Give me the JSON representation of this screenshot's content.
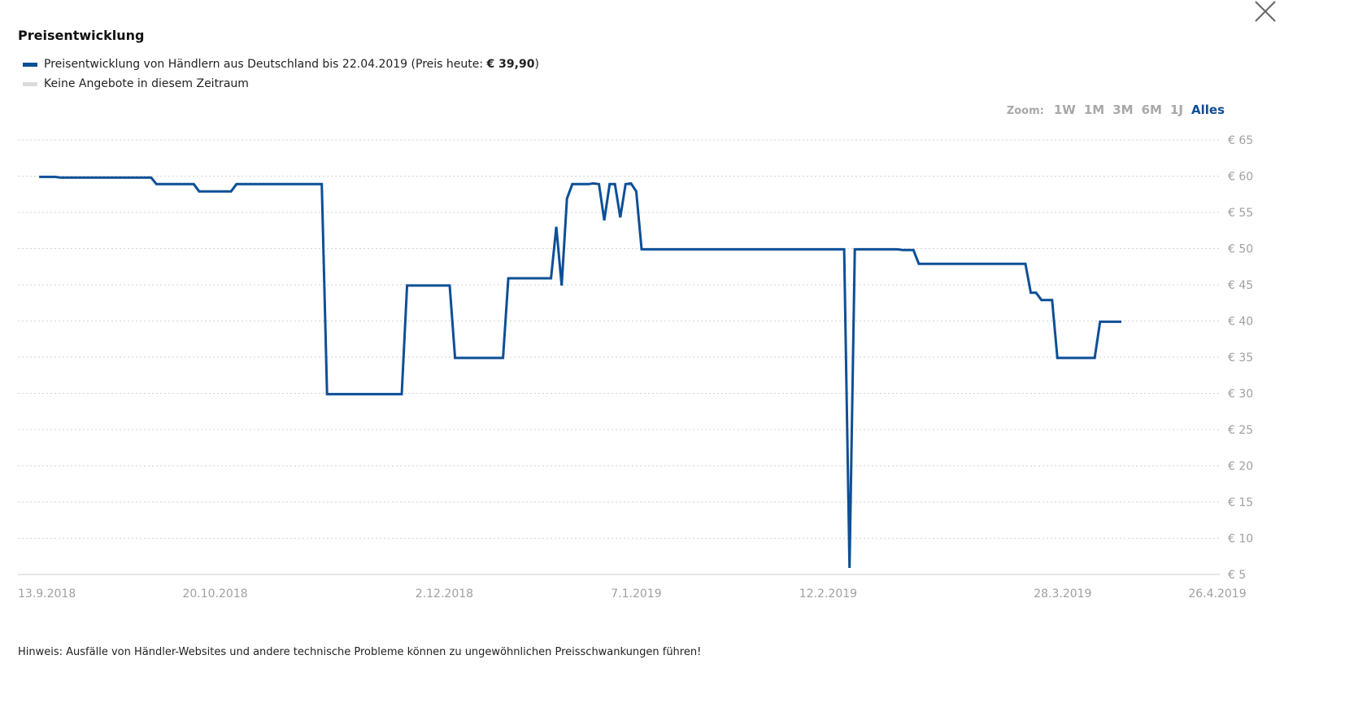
{
  "header": {
    "title": "Preisentwicklung",
    "close_icon": "close-icon"
  },
  "legend": {
    "series_text": "Preisentwicklung von Händlern aus Deutschland bis 22.04.2019 (Preis heute: ",
    "series_price": "€ 39,90",
    "series_end": ")",
    "series_color": "#0d4f96",
    "empty_text": "Keine Angebote in diesem Zeitraum",
    "empty_color": "#dcdcdc"
  },
  "zoom": {
    "label": "Zoom:",
    "options": [
      "1W",
      "1M",
      "3M",
      "6M",
      "1J",
      "Alles"
    ],
    "selected": "Alles"
  },
  "note": "Hinweis: Ausfälle von Händler-Websites und andere technische Probleme können zu ungewöhnlichen Preisschwankungen führen!",
  "chart_data": {
    "type": "line",
    "ylim": [
      5,
      65
    ],
    "yticks": [
      5,
      10,
      15,
      20,
      25,
      30,
      35,
      40,
      45,
      50,
      55,
      60,
      65
    ],
    "ytick_labels": [
      "€ 5",
      "€ 10",
      "€ 15",
      "€ 20",
      "€ 25",
      "€ 30",
      "€ 35",
      "€ 40",
      "€ 45",
      "€ 50",
      "€ 55",
      "€ 60",
      "€ 65"
    ],
    "xlim": [
      "2018-09-13",
      "2019-04-26"
    ],
    "xticks": [
      "2018-09-13",
      "2018-10-20",
      "2018-12-02",
      "2019-01-07",
      "2019-02-12",
      "2019-03-28",
      "2019-04-26"
    ],
    "xtick_labels": [
      "13.9.2018",
      "20.10.2018",
      "2.12.2018",
      "7.1.2019",
      "12.2.2019",
      "28.3.2019",
      "26.4.2019"
    ],
    "grid": true,
    "series": [
      {
        "color": "#0d4f96",
        "points": [
          [
            "2018-09-17",
            59.9
          ],
          [
            "2018-09-20",
            59.9
          ],
          [
            "2018-09-21",
            59.8
          ],
          [
            "2018-10-08",
            59.8
          ],
          [
            "2018-10-09",
            58.9
          ],
          [
            "2018-10-16",
            58.9
          ],
          [
            "2018-10-17",
            57.9
          ],
          [
            "2018-10-23",
            57.9
          ],
          [
            "2018-10-24",
            58.9
          ],
          [
            "2018-11-09",
            58.9
          ],
          [
            "2018-11-10",
            29.9
          ],
          [
            "2018-11-24",
            29.9
          ],
          [
            "2018-11-25",
            44.9
          ],
          [
            "2018-12-03",
            44.9
          ],
          [
            "2018-12-04",
            34.9
          ],
          [
            "2018-12-13",
            34.9
          ],
          [
            "2018-12-14",
            45.9
          ],
          [
            "2018-12-22",
            45.9
          ],
          [
            "2018-12-23",
            53.0
          ],
          [
            "2018-12-24",
            44.9
          ],
          [
            "2018-12-25",
            56.9
          ],
          [
            "2018-12-26",
            58.9
          ],
          [
            "2018-12-29",
            58.9
          ],
          [
            "2018-12-30",
            59.0
          ],
          [
            "2018-12-31",
            58.9
          ],
          [
            "2019-01-01",
            53.9
          ],
          [
            "2019-01-02",
            58.9
          ],
          [
            "2019-01-03",
            58.9
          ],
          [
            "2019-01-04",
            54.3
          ],
          [
            "2019-01-05",
            58.9
          ],
          [
            "2019-01-06",
            59.0
          ],
          [
            "2019-01-07",
            57.9
          ],
          [
            "2019-01-08",
            49.9
          ],
          [
            "2019-02-15",
            49.9
          ],
          [
            "2019-02-16",
            5.9
          ],
          [
            "2019-02-17",
            49.9
          ],
          [
            "2019-02-25",
            49.9
          ],
          [
            "2019-02-26",
            49.8
          ],
          [
            "2019-02-28",
            49.8
          ],
          [
            "2019-03-01",
            47.9
          ],
          [
            "2019-03-21",
            47.9
          ],
          [
            "2019-03-22",
            43.9
          ],
          [
            "2019-03-23",
            43.9
          ],
          [
            "2019-03-24",
            42.9
          ],
          [
            "2019-03-26",
            42.9
          ],
          [
            "2019-03-27",
            34.9
          ],
          [
            "2019-04-03",
            34.9
          ],
          [
            "2019-04-04",
            39.9
          ],
          [
            "2019-04-08",
            39.9
          ]
        ]
      }
    ]
  }
}
